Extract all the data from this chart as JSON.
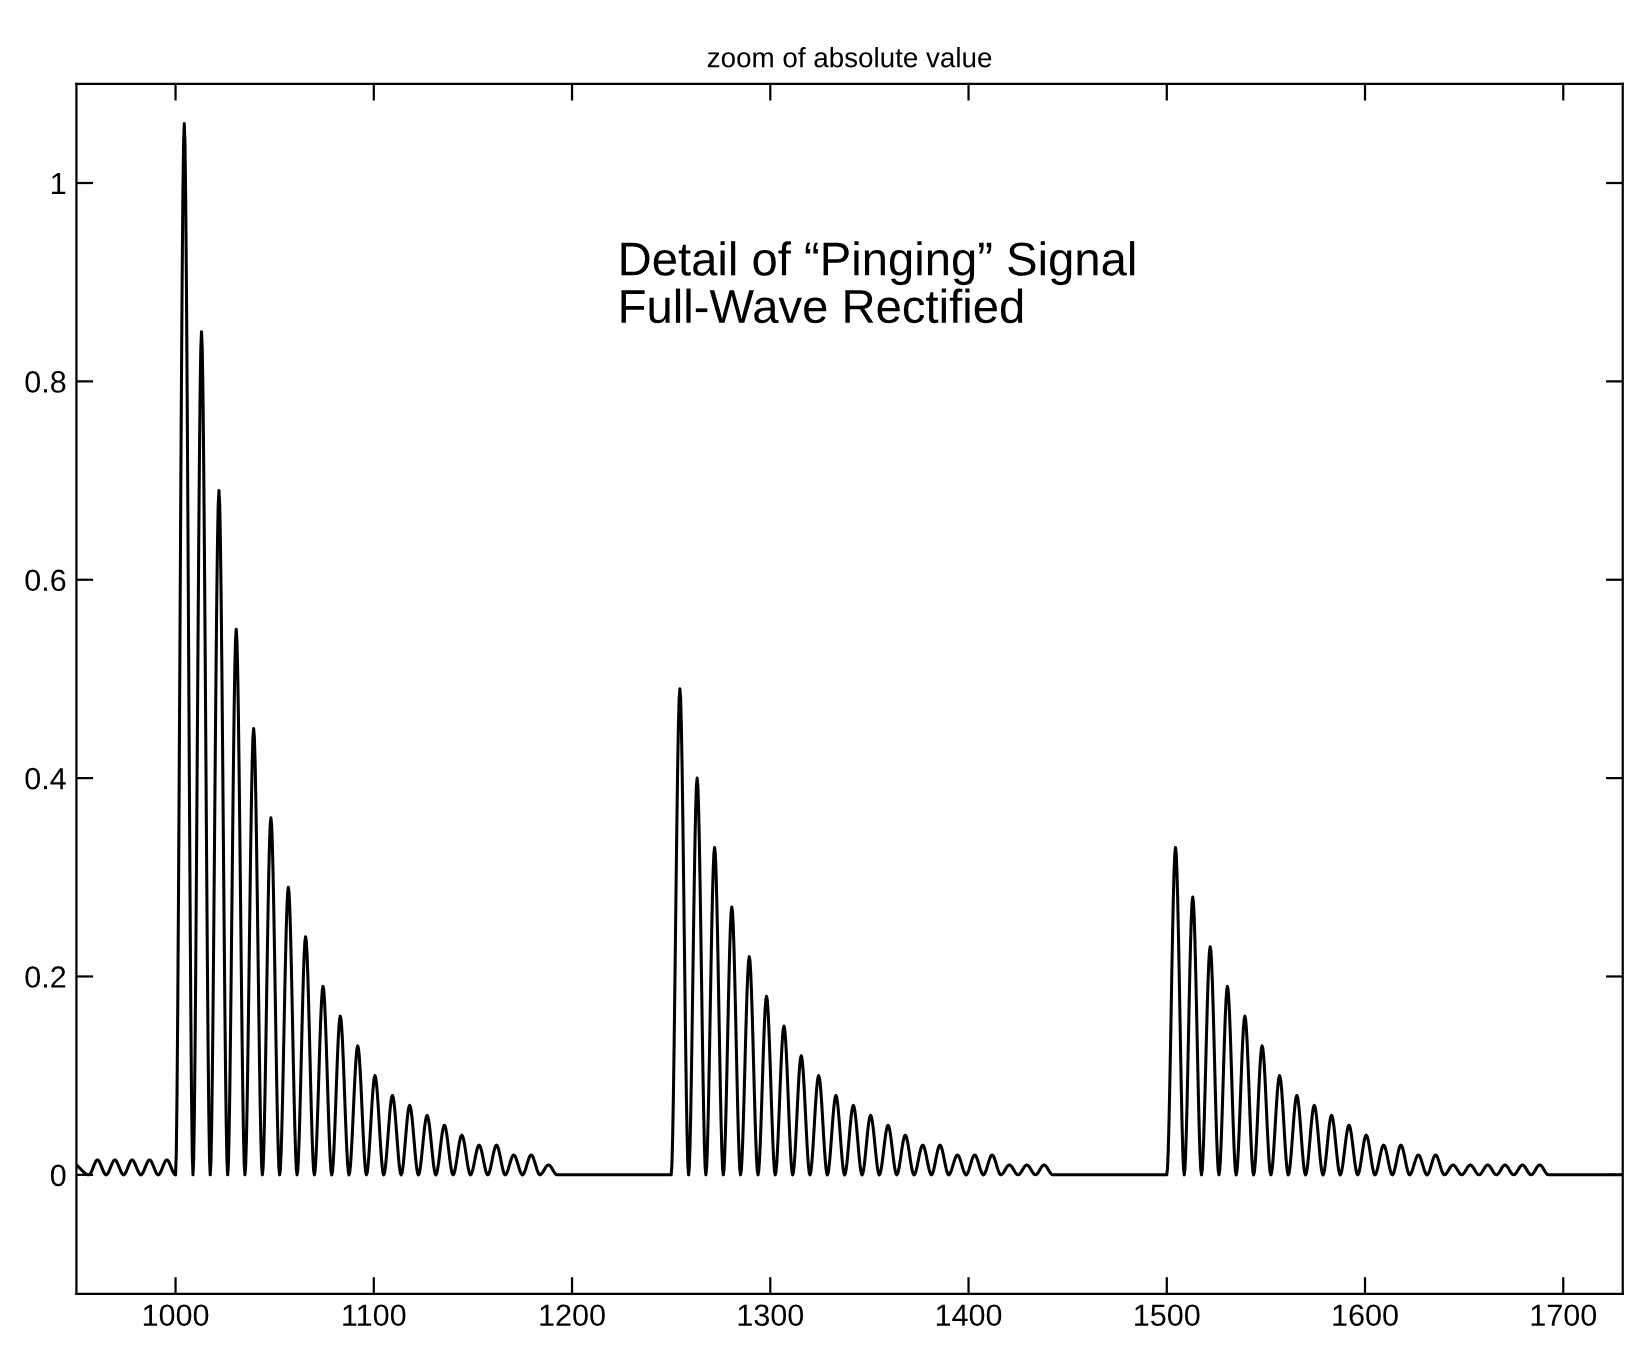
{
  "chart_data": {
    "type": "line",
    "title": "zoom of absolute value",
    "annotations": [
      "Detail of “Pinging” Signal\nFull-Wave Rectified"
    ],
    "xlim": [
      950,
      1730
    ],
    "xticks": [
      1000,
      1100,
      1200,
      1300,
      1400,
      1500,
      1600,
      1700
    ],
    "ylim": [
      -0.12,
      1.1
    ],
    "yticks": [
      0,
      0.2,
      0.4,
      0.6,
      0.8,
      1
    ],
    "marker": "none",
    "line_style": "solid",
    "series": [
      {
        "color": "#000000",
        "x": [
          950,
          956.3,
          960.6,
          965,
          969.4,
          973.8,
          978.1,
          982.5,
          986.9,
          991.3,
          995.6,
          1000,
          1004.4,
          1008.8,
          1013.1,
          1017.5,
          1021.9,
          1026.3,
          1030.6,
          1035,
          1039.4,
          1043.8,
          1048.1,
          1052.5,
          1056.9,
          1061.3,
          1065.6,
          1070,
          1074.4,
          1078.8,
          1083.1,
          1087.5,
          1091.9,
          1096.3,
          1100.6,
          1105,
          1109.4,
          1113.8,
          1118.1,
          1122.5,
          1126.9,
          1131.3,
          1135.6,
          1140,
          1144.4,
          1148.8,
          1153.1,
          1157.5,
          1161.9,
          1166.3,
          1170.6,
          1175,
          1179.4,
          1183.8,
          1188.1,
          1192.5,
          1250,
          1254.4,
          1258.8,
          1263.1,
          1267.5,
          1271.9,
          1276.3,
          1280.6,
          1285,
          1289.4,
          1293.8,
          1298.1,
          1302.5,
          1306.9,
          1311.3,
          1315.6,
          1320,
          1324.4,
          1328.8,
          1333.1,
          1337.5,
          1341.9,
          1346.3,
          1350.6,
          1355,
          1359.4,
          1363.8,
          1368.1,
          1372.5,
          1376.9,
          1381.3,
          1385.6,
          1390,
          1394.4,
          1398.8,
          1403.1,
          1407.5,
          1411.9,
          1416.3,
          1420.6,
          1425,
          1429.4,
          1433.8,
          1438.1,
          1442.5,
          1500,
          1504.4,
          1508.8,
          1513.1,
          1517.5,
          1521.9,
          1526.3,
          1530.6,
          1535,
          1539.4,
          1543.8,
          1548.1,
          1552.5,
          1556.9,
          1561.3,
          1565.6,
          1570,
          1574.4,
          1578.8,
          1583.1,
          1587.5,
          1591.9,
          1596.3,
          1600.6,
          1605,
          1609.4,
          1613.8,
          1618.1,
          1622.5,
          1626.9,
          1631.3,
          1635.6,
          1640,
          1644.4,
          1648.8,
          1653.1,
          1657.5,
          1661.9,
          1666.3,
          1670.6,
          1675,
          1679.4,
          1683.8,
          1688.1,
          1692.5,
          1730
        ],
        "values": [
          0.01,
          0,
          0.015,
          0,
          0.015,
          0,
          0.015,
          0,
          0.015,
          0,
          0.015,
          0,
          1.06,
          0,
          0.85,
          0,
          0.69,
          0,
          0.55,
          0,
          0.45,
          0,
          0.36,
          0,
          0.29,
          0,
          0.24,
          0,
          0.19,
          0,
          0.16,
          0,
          0.13,
          0,
          0.1,
          0,
          0.08,
          0,
          0.07,
          0,
          0.06,
          0,
          0.05,
          0,
          0.04,
          0,
          0.03,
          0,
          0.03,
          0,
          0.02,
          0,
          0.02,
          0,
          0.01,
          0,
          0,
          0.49,
          0,
          0.4,
          0,
          0.33,
          0,
          0.27,
          0,
          0.22,
          0,
          0.18,
          0,
          0.15,
          0,
          0.12,
          0,
          0.1,
          0,
          0.08,
          0,
          0.07,
          0,
          0.06,
          0,
          0.05,
          0,
          0.04,
          0,
          0.03,
          0,
          0.03,
          0,
          0.02,
          0,
          0.02,
          0,
          0.02,
          0,
          0.01,
          0,
          0.01,
          0,
          0.01,
          0,
          0,
          0.33,
          0,
          0.28,
          0,
          0.23,
          0,
          0.19,
          0,
          0.16,
          0,
          0.13,
          0,
          0.1,
          0,
          0.08,
          0,
          0.07,
          0,
          0.06,
          0,
          0.05,
          0,
          0.04,
          0,
          0.03,
          0,
          0.03,
          0,
          0.02,
          0,
          0.02,
          0,
          0.01,
          0,
          0.01,
          0,
          0.01,
          0,
          0.01,
          0,
          0.01,
          0,
          0.01,
          0,
          0
        ]
      }
    ]
  }
}
